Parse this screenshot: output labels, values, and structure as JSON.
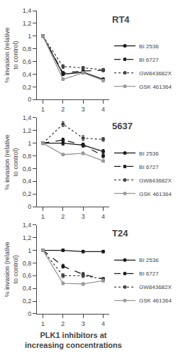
{
  "title": "PLK1 inhibitors at increasing concentrations",
  "chart_data": [
    {
      "type": "line",
      "title": "RT4",
      "ylabel": "% invasion (relative to control)",
      "x": [
        1,
        2,
        3,
        4
      ],
      "xlim": [
        0.7,
        4.3
      ],
      "xticks": [
        1,
        2,
        3,
        4
      ],
      "ylim": [
        0,
        1.4
      ],
      "yticks": [
        0,
        {
          "value": 0.2,
          "label": "0,2"
        },
        {
          "value": 0.4,
          "label": "0,4"
        },
        {
          "value": 0.6,
          "label": "0,6"
        },
        {
          "value": 0.8,
          "label": "0,8"
        },
        1,
        {
          "value": 1.2,
          "label": "1,2"
        },
        {
          "value": 1.4,
          "label": "1,4"
        }
      ],
      "grid": false,
      "legend": "right",
      "series": [
        {
          "name": "BI 2536",
          "line_style": "solid",
          "color": "#1a1a1a",
          "marker": "circle",
          "values": [
            1.0,
            0.4,
            0.43,
            0.32
          ],
          "errors": [
            0.02,
            0.02,
            0.02,
            0.02
          ]
        },
        {
          "name": "BI 6727",
          "line_style": "dashed",
          "color": "#1a1a1a",
          "marker": "circle",
          "values": [
            1.0,
            0.42,
            0.45,
            0.46
          ],
          "errors": [
            0.02,
            0.02,
            0.02,
            0.02
          ]
        },
        {
          "name": "GW843682X",
          "line_style": "dotted",
          "color": "#444444",
          "marker": "circle",
          "values": [
            1.0,
            0.52,
            0.5,
            0.47
          ],
          "errors": [
            0.02,
            0.03,
            0.02,
            0.02
          ]
        },
        {
          "name": "GSK 461364",
          "line_style": "solid",
          "color": "#999999",
          "marker": "circle",
          "values": [
            1.0,
            0.32,
            0.42,
            0.3
          ],
          "errors": [
            0.02,
            0.02,
            0.02,
            0.02
          ]
        }
      ]
    },
    {
      "type": "line",
      "title": "5637",
      "ylabel": "% invasion (relative to control)",
      "x": [
        1,
        2,
        3,
        4
      ],
      "xlim": [
        0.7,
        4.3
      ],
      "xticks": [
        1,
        2,
        3,
        4
      ],
      "ylim": [
        0,
        1.4
      ],
      "yticks": [
        0,
        {
          "value": 0.2,
          "label": "0,2"
        },
        {
          "value": 0.4,
          "label": "0,4"
        },
        {
          "value": 0.6,
          "label": "0,6"
        },
        {
          "value": 0.8,
          "label": "0,8"
        },
        1,
        {
          "value": 1.2,
          "label": "1,2"
        },
        {
          "value": 1.4,
          "label": "1,4"
        }
      ],
      "grid": false,
      "legend": "right",
      "series": [
        {
          "name": "BI 2536",
          "line_style": "solid",
          "color": "#1a1a1a",
          "marker": "circle",
          "values": [
            1.0,
            1.0,
            0.97,
            0.87
          ],
          "errors": [
            0.02,
            0.03,
            0.03,
            0.03
          ]
        },
        {
          "name": "BI 6727",
          "line_style": "dashed",
          "color": "#1a1a1a",
          "marker": "circle",
          "values": [
            1.0,
            1.05,
            0.97,
            0.8
          ],
          "errors": [
            0.02,
            0.03,
            0.03,
            0.03
          ]
        },
        {
          "name": "GW843682X",
          "line_style": "dotted",
          "color": "#444444",
          "marker": "circle",
          "values": [
            1.0,
            1.3,
            1.08,
            1.06
          ],
          "errors": [
            0.02,
            0.04,
            0.04,
            0.03
          ]
        },
        {
          "name": "GSK 461364",
          "line_style": "solid",
          "color": "#999999",
          "marker": "circle",
          "values": [
            1.0,
            0.82,
            0.84,
            0.72
          ],
          "errors": [
            0.02,
            0.02,
            0.02,
            0.02
          ]
        }
      ]
    },
    {
      "type": "line",
      "title": "T24",
      "ylabel": "% invasion (relative to control)",
      "x": [
        1,
        2,
        3,
        4
      ],
      "xlim": [
        0.7,
        4.3
      ],
      "xticks": [
        1,
        2,
        3,
        4
      ],
      "ylim": [
        0,
        1.4
      ],
      "yticks": [
        0,
        {
          "value": 0.2,
          "label": "0,2"
        },
        {
          "value": 0.4,
          "label": "0,4"
        },
        {
          "value": 0.6,
          "label": "0,6"
        },
        {
          "value": 0.8,
          "label": "0,8"
        },
        1,
        {
          "value": 1.2,
          "label": "1,2"
        },
        {
          "value": 1.4,
          "label": "1,4"
        }
      ],
      "grid": false,
      "legend": "right",
      "series": [
        {
          "name": "BI 2536",
          "line_style": "solid",
          "color": "#1a1a1a",
          "marker": "circle",
          "values": [
            1.0,
            1.0,
            0.98,
            0.98
          ],
          "errors": [
            0.02,
            0.02,
            0.02,
            0.02
          ]
        },
        {
          "name": "BI 6727",
          "line_style": "dashed",
          "color": "#1a1a1a",
          "marker": "circle",
          "values": [
            1.0,
            0.75,
            0.62,
            0.55
          ],
          "errors": [
            0.02,
            0.03,
            0.03,
            0.02
          ]
        },
        {
          "name": "GW843682X",
          "line_style": "dotted",
          "color": "#444444",
          "marker": "circle",
          "values": [
            1.0,
            0.6,
            0.6,
            0.55
          ],
          "errors": [
            0.02,
            0.03,
            0.03,
            0.02
          ]
        },
        {
          "name": "GSK 461364",
          "line_style": "solid",
          "color": "#999999",
          "marker": "circle",
          "values": [
            1.0,
            0.48,
            0.47,
            0.52
          ],
          "errors": [
            0.02,
            0.02,
            0.02,
            0.02
          ]
        }
      ]
    }
  ]
}
